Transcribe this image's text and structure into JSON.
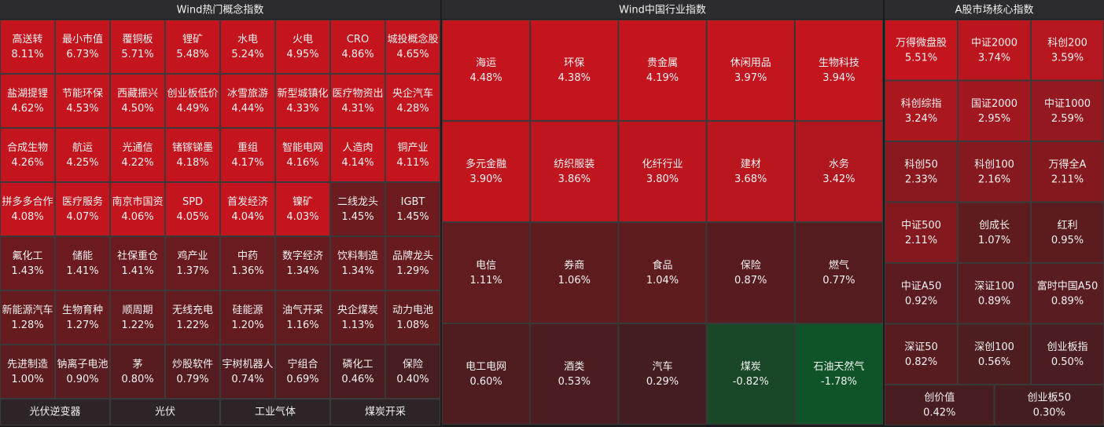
{
  "chart_data": [
    {
      "type": "treemap",
      "title": "Wind热门概念指数",
      "categories": [
        "高送转",
        "最小市值",
        "覆铜板",
        "锂矿",
        "水电",
        "火电",
        "CRO",
        "城投概念股",
        "盐湖提锂",
        "节能环保",
        "西藏振兴",
        "创业板低价",
        "冰雪旅游",
        "新型城镇化",
        "医疗物资出",
        "央企汽车",
        "合成生物",
        "航运",
        "光通信",
        "锗镓锑墨",
        "重组",
        "智能电网",
        "人造肉",
        "铜产业",
        "拼多多合作",
        "医疗服务",
        "南京市国资",
        "SPD",
        "首发经济",
        "镍矿",
        "二线龙头",
        "IGBT",
        "氟化工",
        "储能",
        "社保重仓",
        "鸡产业",
        "中药",
        "数字经济",
        "饮料制造",
        "品牌龙头",
        "新能源汽车",
        "生物育种",
        "顺周期",
        "无线充电",
        "硅能源",
        "油气开采",
        "央企煤炭",
        "动力电池",
        "先进制造",
        "钠离子电池",
        "茅",
        "炒股软件",
        "宇树机器人",
        "宁组合",
        "磷化工",
        "保险",
        "光伏逆变器",
        "光伏",
        "工业气体",
        "煤炭开采"
      ],
      "values": [
        8.11,
        6.73,
        5.71,
        5.48,
        5.24,
        4.95,
        4.86,
        4.65,
        4.62,
        4.53,
        4.5,
        4.49,
        4.44,
        4.33,
        4.31,
        4.28,
        4.26,
        4.25,
        4.22,
        4.18,
        4.17,
        4.16,
        4.14,
        4.11,
        4.08,
        4.07,
        4.06,
        4.05,
        4.04,
        4.03,
        1.45,
        1.45,
        1.43,
        1.41,
        1.41,
        1.37,
        1.36,
        1.34,
        1.34,
        1.29,
        1.28,
        1.27,
        1.22,
        1.22,
        1.2,
        1.16,
        1.13,
        1.08,
        1.0,
        0.9,
        0.8,
        0.79,
        0.74,
        0.69,
        0.46,
        0.4,
        null,
        null,
        null,
        null
      ],
      "value_labels": [
        "8.11%",
        "6.73%",
        "5.71%",
        "5.48%",
        "5.24%",
        "4.95%",
        "4.86%",
        "4.65%",
        "4.62%",
        "4.53%",
        "4.50%",
        "4.49%",
        "4.44%",
        "4.33%",
        "4.31%",
        "4.28%",
        "4.26%",
        "4.25%",
        "4.22%",
        "4.18%",
        "4.17%",
        "4.16%",
        "4.14%",
        "4.11%",
        "4.08%",
        "4.07%",
        "4.06%",
        "4.05%",
        "4.04%",
        "4.03%",
        "1.45%",
        "1.45%",
        "1.43%",
        "1.41%",
        "1.41%",
        "1.37%",
        "1.36%",
        "1.34%",
        "1.34%",
        "1.29%",
        "1.28%",
        "1.27%",
        "1.22%",
        "1.22%",
        "1.20%",
        "1.16%",
        "1.13%",
        "1.08%",
        "1.00%",
        "0.90%",
        "0.80%",
        "0.79%",
        "0.74%",
        "0.69%",
        "0.46%",
        "0.40%",
        null,
        null,
        null,
        null
      ]
    },
    {
      "type": "treemap",
      "title": "Wind中国行业指数",
      "categories": [
        "海运",
        "环保",
        "贵金属",
        "休闲用品",
        "生物科技",
        "多元金融",
        "纺织服装",
        "化纤行业",
        "建材",
        "水务",
        "电信",
        "券商",
        "食品",
        "保险",
        "燃气",
        "电工电网",
        "酒类",
        "汽车",
        "煤炭",
        "石油天然气"
      ],
      "values": [
        4.48,
        4.38,
        4.19,
        3.97,
        3.94,
        3.9,
        3.86,
        3.8,
        3.68,
        3.42,
        1.11,
        1.06,
        1.04,
        0.87,
        0.77,
        0.6,
        0.53,
        0.29,
        -0.82,
        -1.78
      ],
      "value_labels": [
        "4.48%",
        "4.38%",
        "4.19%",
        "3.97%",
        "3.94%",
        "3.90%",
        "3.86%",
        "3.80%",
        "3.68%",
        "3.42%",
        "1.11%",
        "1.06%",
        "1.04%",
        "0.87%",
        "0.77%",
        "0.60%",
        "0.53%",
        "0.29%",
        "-0.82%",
        "-1.78%"
      ]
    },
    {
      "type": "treemap",
      "title": "A股市场核心指数",
      "categories": [
        "万得微盘股",
        "中证2000",
        "科创200",
        "科创综指",
        "国证2000",
        "中证1000",
        "科创50",
        "科创100",
        "万得全A",
        "中证500",
        "创成长",
        "红利",
        "中证A50",
        "深证100",
        "富时中国A50",
        "深证50",
        "深创100",
        "创业板指",
        "创价值",
        "创业板50"
      ],
      "values": [
        5.51,
        3.74,
        3.59,
        3.24,
        2.95,
        2.59,
        2.33,
        2.16,
        2.11,
        2.11,
        1.07,
        0.95,
        0.92,
        0.89,
        0.89,
        0.82,
        0.56,
        0.5,
        0.42,
        0.3
      ],
      "value_labels": [
        "5.51%",
        "3.74%",
        "3.59%",
        "3.24%",
        "2.95%",
        "2.59%",
        "2.33%",
        "2.16%",
        "2.11%",
        "2.11%",
        "1.07%",
        "0.95%",
        "0.92%",
        "0.89%",
        "0.89%",
        "0.82%",
        "0.56%",
        "0.50%",
        "0.42%",
        "0.30%"
      ]
    }
  ]
}
